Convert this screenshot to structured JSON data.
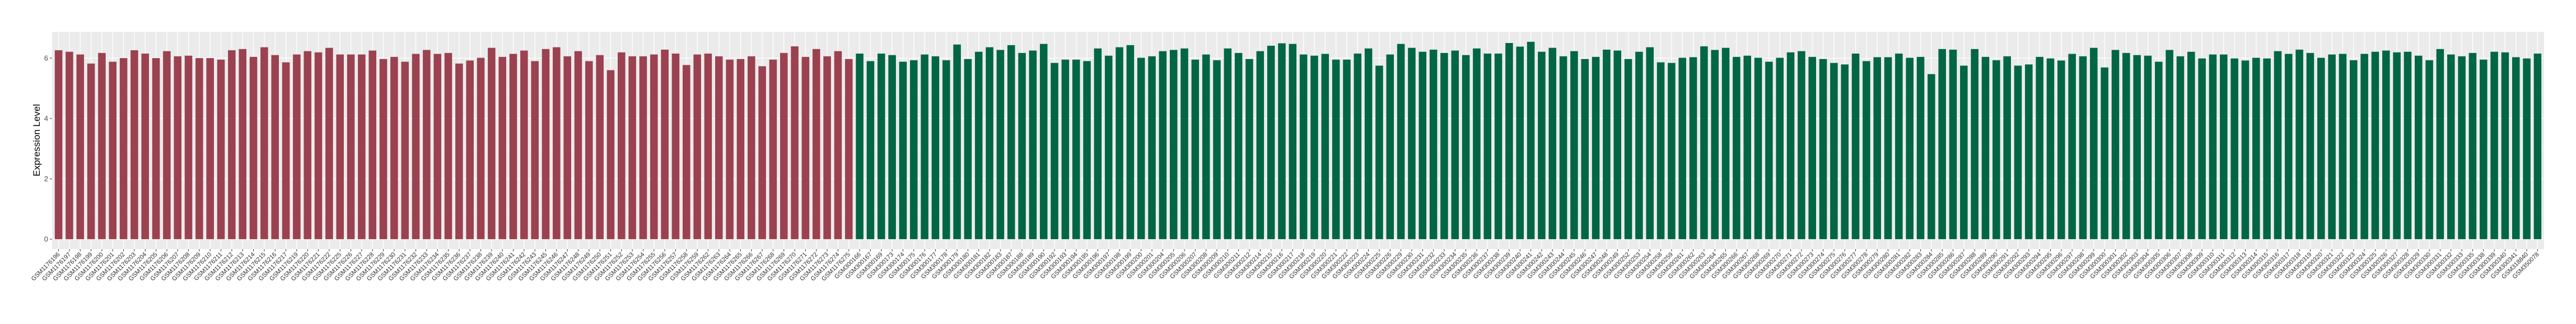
{
  "chart_data": {
    "type": "bar",
    "title": "",
    "xlabel": "",
    "ylabel": "Expression Level",
    "ylim": [
      -0.33,
      6.87
    ],
    "yticks": [
      0,
      2,
      4,
      6
    ],
    "grid": true,
    "panel_background": "#EBEBEB",
    "groups": [
      {
        "color": "#9B4150",
        "categories": [
          "GSM1176196",
          "GSM1176197",
          "GSM1176198",
          "GSM1176199",
          "GSM1176200",
          "GSM1176201",
          "GSM1176202",
          "GSM1176203",
          "GSM1176204",
          "GSM1176205",
          "GSM1176206",
          "GSM1176207",
          "GSM1176208",
          "GSM1176209",
          "GSM1176210",
          "GSM1176211",
          "GSM1176212",
          "GSM1176213",
          "GSM1176214",
          "GSM1176215",
          "GSM1176216",
          "GSM1176217",
          "GSM1176219",
          "GSM1176220",
          "GSM1176221",
          "GSM1176222",
          "GSM1176225",
          "GSM1176226",
          "GSM1176227",
          "GSM1176228",
          "GSM1176229",
          "GSM1176230",
          "GSM1176231",
          "GSM1176232",
          "GSM1176233",
          "GSM1176234",
          "GSM1176235",
          "GSM1176236",
          "GSM1176237",
          "GSM1176238",
          "GSM1176239",
          "GSM1176240",
          "GSM1176241",
          "GSM1176242",
          "GSM1176243",
          "GSM1176245",
          "GSM1176246",
          "GSM1176247",
          "GSM1176248",
          "GSM1176249",
          "GSM1176250",
          "GSM1176251",
          "GSM1176252",
          "GSM1176253",
          "GSM1176254",
          "GSM1176255",
          "GSM1176256",
          "GSM1176257",
          "GSM1176258",
          "GSM1176259",
          "GSM1176262",
          "GSM1176263",
          "GSM1176264",
          "GSM1176265",
          "GSM1176266",
          "GSM1176267",
          "GSM1176268",
          "GSM1176269",
          "GSM1176270",
          "GSM1176271",
          "GSM1176272",
          "GSM1176273",
          "GSM1176274",
          "GSM1176275"
        ],
        "values": [
          6.26,
          6.21,
          6.12,
          5.82,
          6.17,
          5.88,
          6.0,
          6.26,
          6.15,
          6.0,
          6.23,
          6.06,
          6.08,
          6.0,
          6.0,
          5.95,
          6.26,
          6.3,
          6.04,
          6.36,
          6.1,
          5.86,
          6.12,
          6.23,
          6.19,
          6.34,
          6.12,
          6.12,
          6.12,
          6.25,
          5.97,
          6.04,
          5.88,
          6.14,
          6.27,
          6.14,
          6.17,
          5.82,
          5.92,
          6.01,
          6.34,
          6.04,
          6.14,
          6.25,
          5.9,
          6.3,
          6.36,
          6.06,
          6.23,
          5.9,
          6.1,
          5.6,
          6.19,
          6.06,
          6.06,
          6.12,
          6.28,
          6.15,
          5.77,
          6.12,
          6.15,
          6.06,
          5.95,
          5.97,
          6.06,
          5.73,
          5.95,
          6.17,
          6.39,
          6.04,
          6.3,
          6.06,
          6.23,
          5.97
        ]
      },
      {
        "color": "#006644",
        "categories": [
          "GSM300166",
          "GSM300167",
          "GSM300169",
          "GSM300173",
          "GSM300174",
          "GSM300175",
          "GSM300176",
          "GSM300177",
          "GSM300178",
          "GSM300179",
          "GSM300180",
          "GSM300181",
          "GSM300182",
          "GSM300183",
          "GSM300187",
          "GSM300188",
          "GSM300189",
          "GSM300190",
          "GSM300192",
          "GSM300193",
          "GSM300194",
          "GSM300195",
          "GSM300196",
          "GSM300197",
          "GSM300198",
          "GSM300199",
          "GSM300200",
          "GSM300201",
          "GSM300204",
          "GSM300205",
          "GSM300206",
          "GSM300207",
          "GSM300208",
          "GSM300209",
          "GSM300210",
          "GSM300211",
          "GSM300212",
          "GSM300214",
          "GSM300215",
          "GSM300216",
          "GSM300217",
          "GSM300218",
          "GSM300219",
          "GSM300220",
          "GSM300221",
          "GSM300222",
          "GSM300223",
          "GSM300224",
          "GSM300225",
          "GSM300226",
          "GSM300229",
          "GSM300230",
          "GSM300231",
          "GSM300232",
          "GSM300233",
          "GSM300234",
          "GSM300235",
          "GSM300236",
          "GSM300237",
          "GSM300238",
          "GSM300239",
          "GSM300240",
          "GSM300241",
          "GSM300242",
          "GSM300243",
          "GSM300244",
          "GSM300245",
          "GSM300246",
          "GSM300247",
          "GSM300248",
          "GSM300249",
          "GSM300252",
          "GSM300253",
          "GSM300254",
          "GSM300258",
          "GSM300259",
          "GSM300261",
          "GSM300262",
          "GSM300263",
          "GSM300264",
          "GSM300265",
          "GSM300266",
          "GSM300267",
          "GSM300268",
          "GSM300269",
          "GSM300270",
          "GSM300271",
          "GSM300272",
          "GSM300273",
          "GSM300274",
          "GSM300275",
          "GSM300276",
          "GSM300277",
          "GSM300278",
          "GSM300279",
          "GSM300280",
          "GSM300281",
          "GSM300282",
          "GSM300283",
          "GSM300284",
          "GSM300285",
          "GSM300286",
          "GSM300287",
          "GSM300288",
          "GSM300289",
          "GSM300290",
          "GSM300291",
          "GSM300292",
          "GSM300293",
          "GSM300294",
          "GSM300295",
          "GSM300296",
          "GSM300297",
          "GSM300298",
          "GSM300299",
          "GSM300300",
          "GSM300301",
          "GSM300302",
          "GSM300303",
          "GSM300304",
          "GSM300305",
          "GSM300306",
          "GSM300307",
          "GSM300308",
          "GSM300309",
          "GSM300310",
          "GSM300311",
          "GSM300312",
          "GSM300313",
          "GSM300314",
          "GSM300315",
          "GSM300316",
          "GSM300317",
          "GSM300318",
          "GSM300319",
          "GSM300320",
          "GSM300321",
          "GSM300322",
          "GSM300323",
          "GSM300324",
          "GSM300325",
          "GSM300326",
          "GSM300327",
          "GSM300328",
          "GSM300329",
          "GSM300330",
          "GSM300331",
          "GSM300332",
          "GSM300333",
          "GSM300335",
          "GSM300338",
          "GSM300339",
          "GSM300340",
          "GSM300341",
          "GSM318840",
          "GSM350078"
        ],
        "values": [
          6.15,
          5.9,
          6.15,
          6.1,
          5.88,
          5.93,
          6.12,
          6.06,
          5.93,
          6.45,
          5.97,
          6.21,
          6.36,
          6.27,
          6.43,
          6.17,
          6.25,
          6.47,
          5.84,
          5.95,
          5.95,
          5.9,
          6.32,
          6.08,
          6.36,
          6.43,
          6.01,
          6.06,
          6.23,
          6.27,
          6.32,
          5.95,
          6.12,
          5.93,
          6.32,
          6.17,
          5.97,
          6.23,
          6.41,
          6.49,
          6.47,
          6.12,
          6.08,
          6.14,
          5.95,
          5.95,
          6.15,
          6.32,
          5.75,
          6.12,
          6.47,
          6.34,
          6.21,
          6.28,
          6.17,
          6.25,
          6.1,
          6.32,
          6.15,
          6.15,
          6.5,
          6.38,
          6.54,
          6.21,
          6.34,
          6.06,
          6.23,
          5.97,
          6.04,
          6.28,
          6.25,
          5.97,
          6.21,
          6.36,
          5.86,
          5.84,
          6.01,
          6.03,
          6.39,
          6.27,
          6.34,
          6.04,
          6.08,
          6.01,
          5.88,
          6.01,
          6.19,
          6.23,
          6.04,
          5.97,
          5.84,
          5.79,
          6.15,
          5.9,
          6.03,
          6.03,
          6.15,
          6.01,
          6.04,
          5.47,
          6.3,
          6.28,
          5.75,
          6.3,
          6.04,
          5.93,
          6.06,
          5.75,
          5.79,
          6.04,
          5.99,
          5.92,
          6.14,
          6.06,
          6.34,
          5.69,
          6.27,
          6.17,
          6.1,
          6.08,
          5.88,
          6.27,
          6.06,
          6.21,
          5.99,
          6.12,
          6.12,
          5.99,
          5.92,
          6.01,
          5.99,
          6.23,
          6.14,
          6.28,
          6.17,
          6.01,
          6.12,
          6.14,
          5.93,
          6.14,
          6.21,
          6.25,
          6.19,
          6.21,
          6.08,
          5.93,
          6.3,
          6.12,
          6.06,
          6.17,
          5.95,
          6.21,
          6.19,
          6.03,
          5.99,
          6.15
        ]
      }
    ]
  }
}
